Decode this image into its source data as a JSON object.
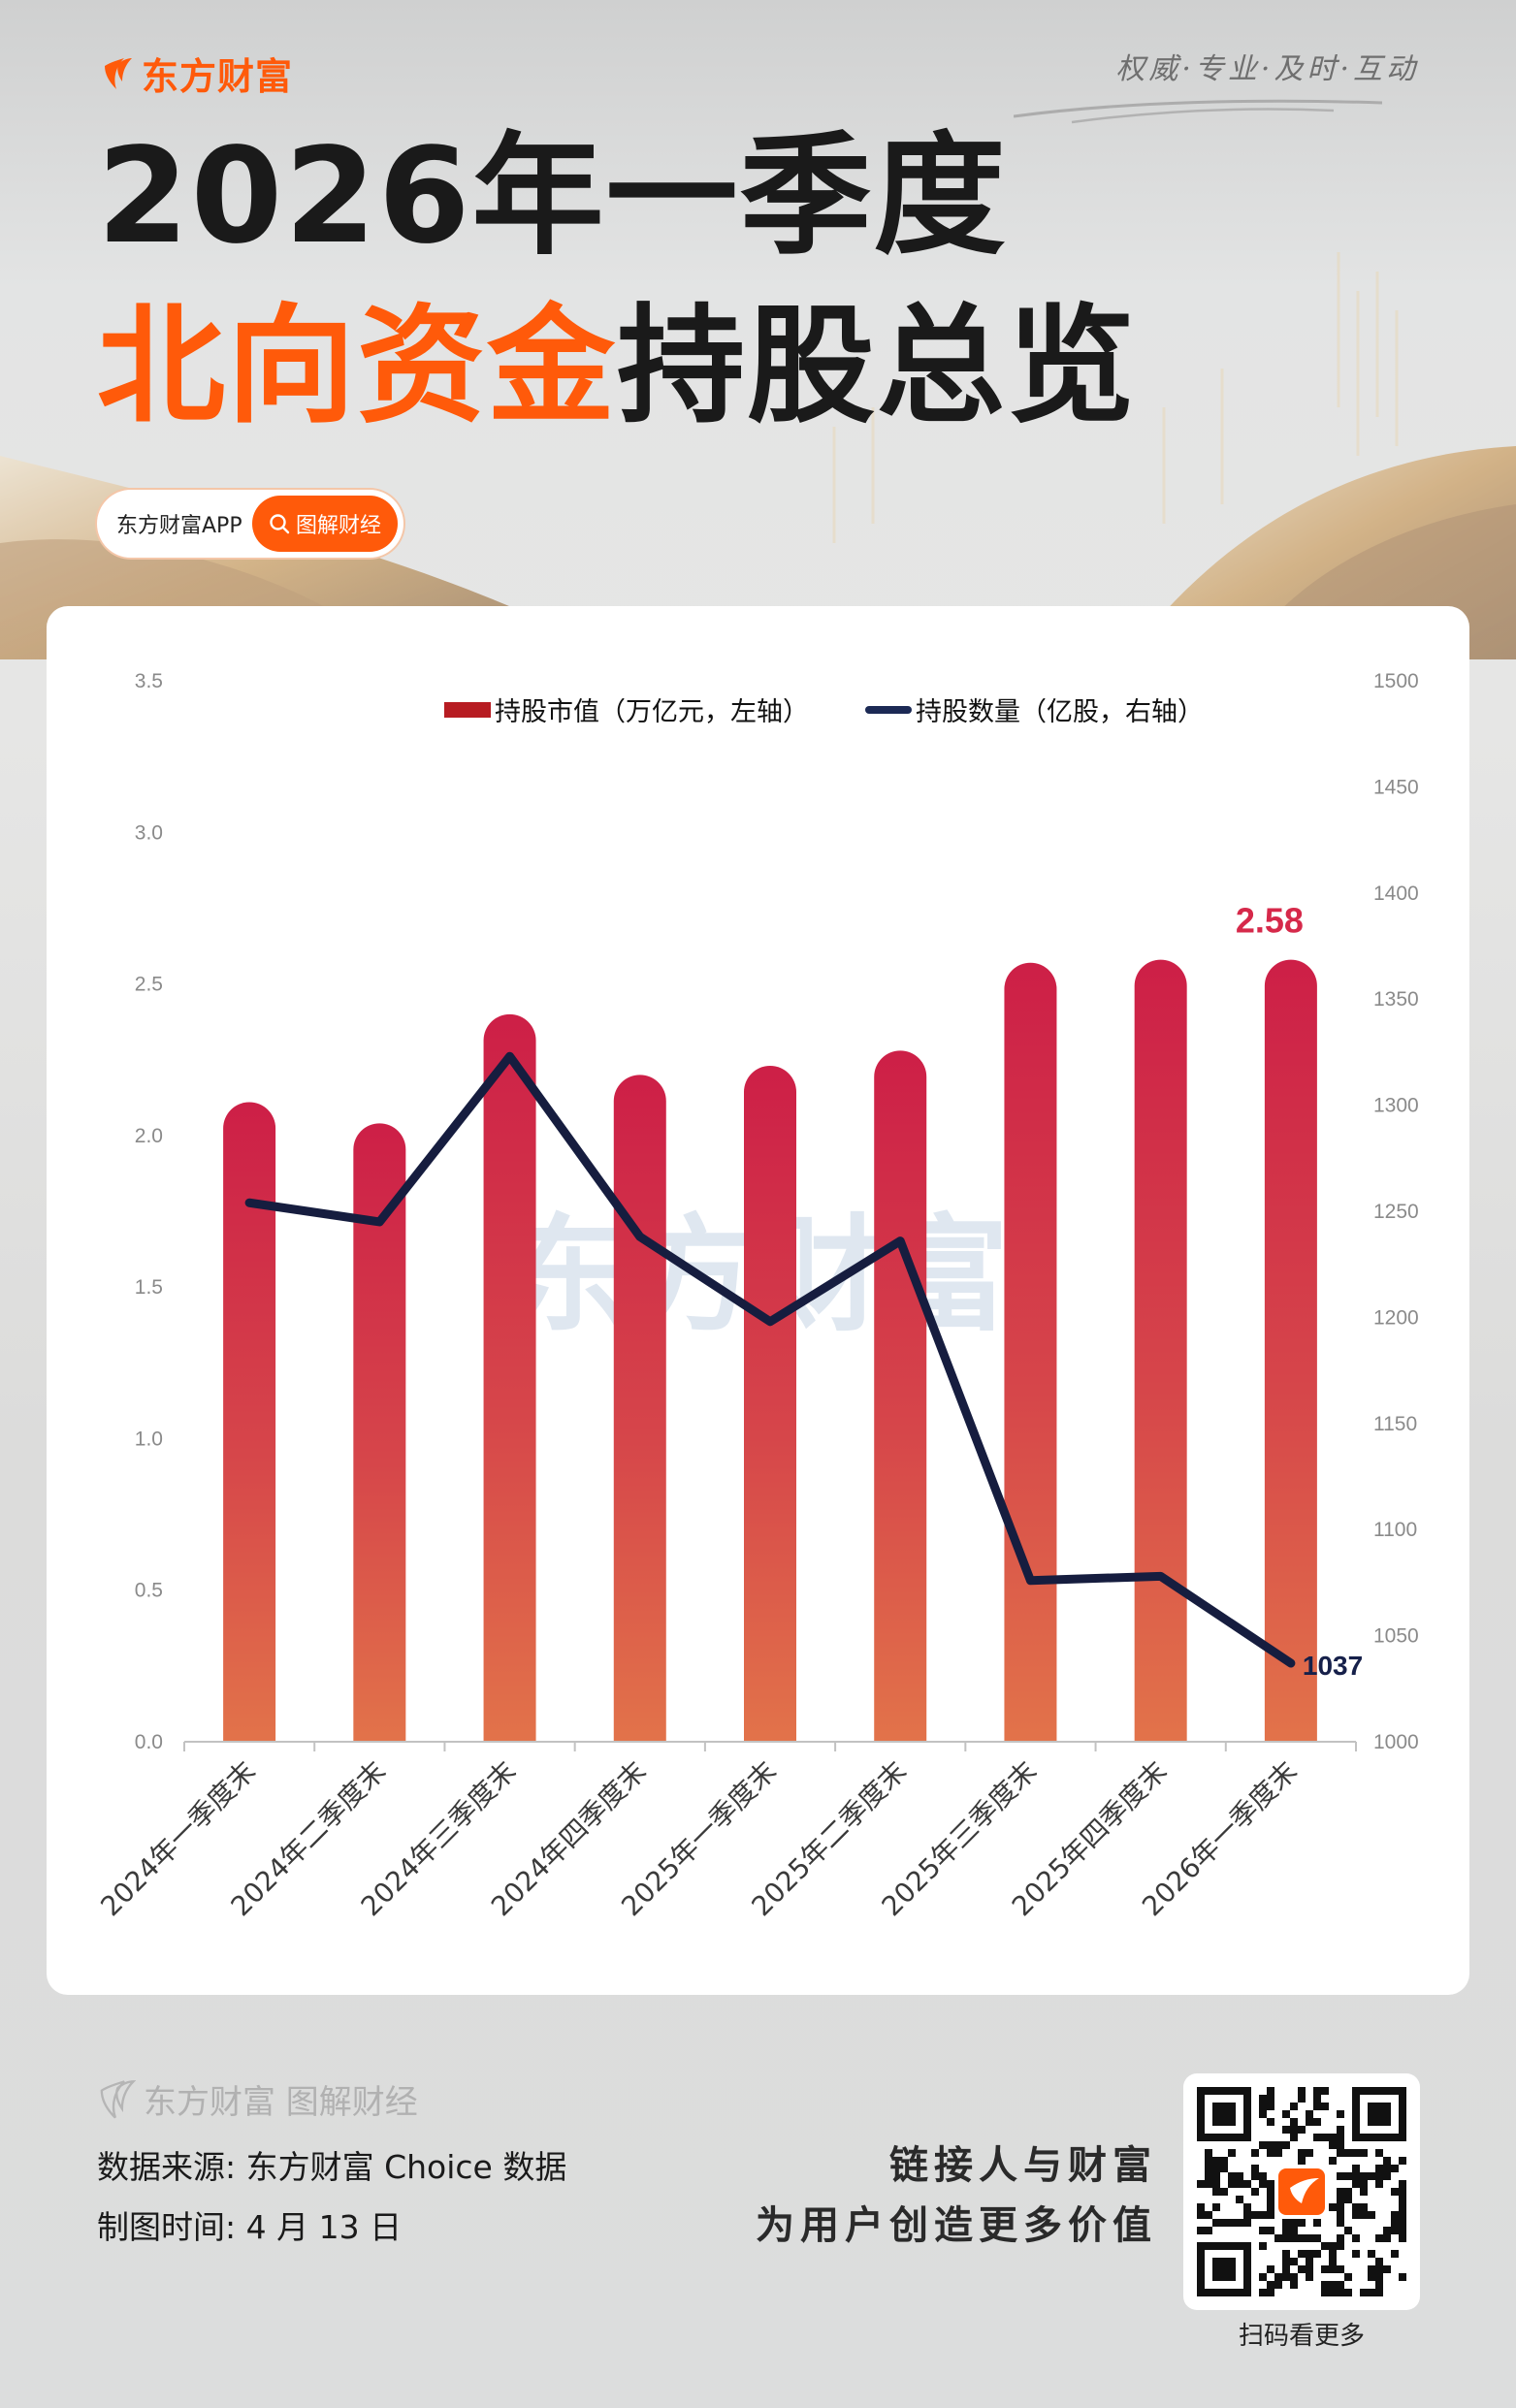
{
  "header": {
    "brand": "东方财富",
    "slogan": "权威·专业·及时·互动",
    "title_line1": "2026年一季度",
    "title_line2_highlight": "北向资金",
    "title_line2_rest": "持股总览",
    "pill_left": "东方财富APP",
    "pill_right": "图解财经"
  },
  "legend": {
    "bar_label": "持股市值（万亿元，左轴）",
    "line_label": "持股数量（亿股，右轴）"
  },
  "colors": {
    "brand_orange": "#ff5a0a",
    "bar_top": "#cd1f47",
    "bar_bottom": "#e2734a",
    "line": "#1a2246",
    "label_red": "#d6294a",
    "legend_bar": "#b71c22"
  },
  "chart_data": {
    "type": "bar+line",
    "title": "2026年一季度北向资金持股总览",
    "categories": [
      "2024年一季度末",
      "2024年二季度末",
      "2024年三季度末",
      "2024年四季度末",
      "2025年一季度末",
      "2025年二季度末",
      "2025年三季度末",
      "2025年四季度末",
      "2026年一季度末"
    ],
    "series": [
      {
        "name": "持股市值（万亿元，左轴）",
        "type": "bar",
        "axis": "left",
        "values": [
          2.11,
          2.04,
          2.4,
          2.2,
          2.23,
          2.28,
          2.57,
          2.58,
          2.58
        ]
      },
      {
        "name": "持股数量（亿股，右轴）",
        "type": "line",
        "axis": "right",
        "values": [
          1254,
          1245,
          1323,
          1238,
          1198,
          1236,
          1076,
          1078,
          1037
        ]
      }
    ],
    "left_axis": {
      "min": 0,
      "max": 3.5,
      "ticks": [
        "0.0",
        "0.5",
        "1.0",
        "1.5",
        "2.0",
        "2.5",
        "3.0",
        "3.5"
      ]
    },
    "right_axis": {
      "min": 1000,
      "max": 1500,
      "ticks": [
        "1000",
        "1050",
        "1100",
        "1150",
        "1200",
        "1250",
        "1300",
        "1350",
        "1400",
        "1450",
        "1500"
      ]
    },
    "annotations": [
      {
        "series": "持股市值（万亿元，左轴）",
        "category": "2026年一季度末",
        "text": "2.58"
      },
      {
        "series": "持股数量（亿股，右轴）",
        "category": "2026年一季度末",
        "text": "1037"
      }
    ],
    "grid": false,
    "legend_position": "top",
    "watermark": "东方财富"
  },
  "footer": {
    "brand": "东方财富 图解财经",
    "source": "数据来源: 东方财富 Choice 数据",
    "date": "制图时间: 4 月 13 日",
    "tagline1": "链接人与财富",
    "tagline2": "为用户创造更多价值",
    "qr_caption": "扫码看更多"
  }
}
